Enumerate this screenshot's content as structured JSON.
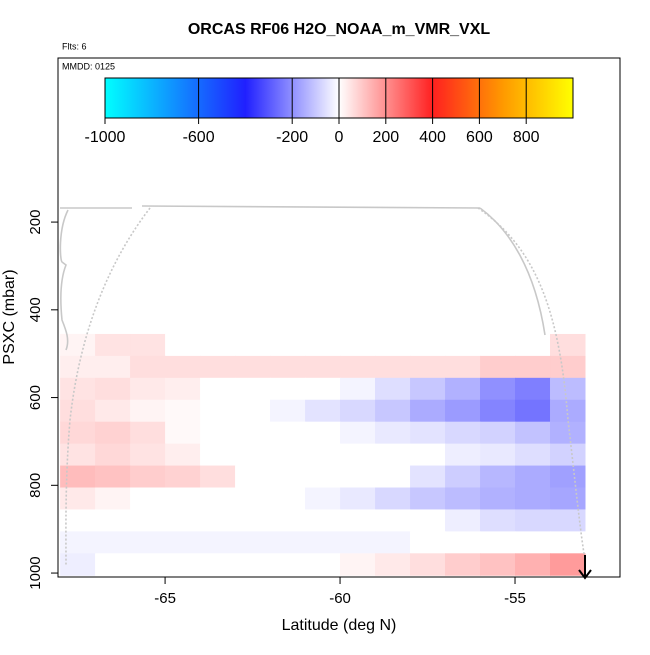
{
  "chart_data": {
    "type": "heatmap",
    "title": "ORCAS RF06 H2O_NOAA_m_VMR_VXL",
    "subtitle": "Flts: 6",
    "annotation": "MMDD: 0125",
    "x_label": "Latitude (deg N)",
    "y_label": "PSXC (mbar)",
    "xlim": [
      -68.06,
      -52.0
    ],
    "xticks": [
      -65,
      -60,
      -55
    ],
    "ylim": [
      1009,
      -174
    ],
    "yticks": [
      200,
      400,
      600,
      800,
      1000
    ],
    "x_bins": [
      -68,
      -67,
      -66,
      -65,
      -64,
      -63,
      -62,
      -61,
      -60,
      -59,
      -58,
      -57,
      -56,
      -55,
      -54,
      -53
    ],
    "y_bins": [
      455,
      505,
      555,
      605,
      655,
      705,
      755,
      805,
      855,
      905,
      955,
      1005
    ],
    "values": [
      [
        20,
        50,
        50,
        0,
        0,
        0,
        0,
        0,
        0,
        0,
        0,
        0,
        0,
        0,
        60
      ],
      [
        30,
        30,
        60,
        60,
        60,
        60,
        60,
        60,
        60,
        60,
        60,
        60,
        90,
        90,
        90
      ],
      [
        50,
        60,
        40,
        30,
        0,
        0,
        0,
        0,
        -20,
        -60,
        -100,
        -140,
        -200,
        -230,
        -120
      ],
      [
        60,
        40,
        20,
        10,
        0,
        0,
        -20,
        -50,
        -70,
        -100,
        -150,
        -180,
        -220,
        -250,
        -150
      ],
      [
        70,
        80,
        60,
        10,
        0,
        0,
        0,
        0,
        -20,
        -40,
        -50,
        -70,
        -80,
        -110,
        -140
      ],
      [
        50,
        70,
        50,
        30,
        0,
        0,
        0,
        0,
        0,
        0,
        0,
        -30,
        -40,
        -60,
        -80
      ],
      [
        120,
        110,
        90,
        80,
        60,
        0,
        0,
        0,
        0,
        0,
        -50,
        -90,
        -130,
        -150,
        -170
      ],
      [
        40,
        20,
        0,
        0,
        0,
        0,
        0,
        -20,
        -40,
        -70,
        -100,
        -120,
        -140,
        -150,
        -160
      ],
      [
        0,
        0,
        0,
        0,
        0,
        0,
        0,
        0,
        0,
        0,
        0,
        -30,
        -60,
        -70,
        -70
      ],
      [
        -20,
        -20,
        -20,
        -20,
        -20,
        -20,
        -20,
        -20,
        -20,
        -20,
        0,
        0,
        0,
        0,
        0
      ],
      [
        -30,
        0,
        0,
        0,
        0,
        0,
        0,
        0,
        20,
        40,
        60,
        90,
        110,
        140,
        180
      ]
    ],
    "colorbar": {
      "lim": [
        -1000,
        1000
      ],
      "ticks": [
        -1000,
        -600,
        -200,
        0,
        200,
        400,
        600,
        800
      ],
      "color_stops": [
        {
          "value": -1000,
          "color": "#00ffff"
        },
        {
          "value": -400,
          "color": "#2020ff"
        },
        {
          "value": 0,
          "color": "#ffffff"
        },
        {
          "value": 400,
          "color": "#ff2020"
        },
        {
          "value": 700,
          "color": "#ff9900"
        },
        {
          "value": 1000,
          "color": "#ffff00"
        }
      ]
    }
  }
}
